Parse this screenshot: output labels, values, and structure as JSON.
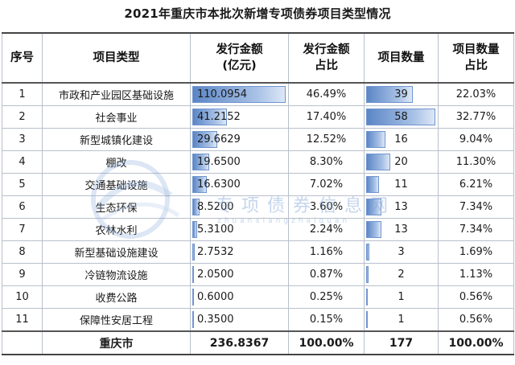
{
  "title": "2021年重庆市本批次新增专项债券项目类型情况",
  "headers": {
    "seq": "序号",
    "type": "项目类型",
    "amount_line1": "发行金额",
    "amount_line2": "(亿元)",
    "amount_share_line1": "发行金额",
    "amount_share_line2": "占比",
    "count": "项目数量",
    "count_share_line1": "项目数量",
    "count_share_line2": "占比"
  },
  "rows": [
    {
      "seq": "1",
      "type": "市政和产业园区基础设施",
      "amount": "110.0954",
      "amount_share": "46.49%",
      "count": "39",
      "count_share": "22.03%",
      "amount_value": 110.0954,
      "count_value": 39
    },
    {
      "seq": "2",
      "type": "社会事业",
      "amount": "41.2152",
      "amount_share": "17.40%",
      "count": "58",
      "count_share": "32.77%",
      "amount_value": 41.2152,
      "count_value": 58
    },
    {
      "seq": "3",
      "type": "新型城镇化建设",
      "amount": "29.6629",
      "amount_share": "12.52%",
      "count": "16",
      "count_share": "9.04%",
      "amount_value": 29.6629,
      "count_value": 16
    },
    {
      "seq": "4",
      "type": "棚改",
      "amount": "19.6500",
      "amount_share": "8.30%",
      "count": "20",
      "count_share": "11.30%",
      "amount_value": 19.65,
      "count_value": 20
    },
    {
      "seq": "5",
      "type": "交通基础设施",
      "amount": "16.6300",
      "amount_share": "7.02%",
      "count": "11",
      "count_share": "6.21%",
      "amount_value": 16.63,
      "count_value": 11
    },
    {
      "seq": "6",
      "type": "生态环保",
      "amount": "8.5200",
      "amount_share": "3.60%",
      "count": "13",
      "count_share": "7.34%",
      "amount_value": 8.52,
      "count_value": 13
    },
    {
      "seq": "7",
      "type": "农林水利",
      "amount": "5.3100",
      "amount_share": "2.24%",
      "count": "13",
      "count_share": "7.34%",
      "amount_value": 5.31,
      "count_value": 13
    },
    {
      "seq": "8",
      "type": "新型基础设施建设",
      "amount": "2.7532",
      "amount_share": "1.16%",
      "count": "3",
      "count_share": "1.69%",
      "amount_value": 2.7532,
      "count_value": 3
    },
    {
      "seq": "9",
      "type": "冷链物流设施",
      "amount": "2.0500",
      "amount_share": "0.87%",
      "count": "2",
      "count_share": "1.13%",
      "amount_value": 2.05,
      "count_value": 2
    },
    {
      "seq": "10",
      "type": "收费公路",
      "amount": "0.6000",
      "amount_share": "0.25%",
      "count": "1",
      "count_share": "0.56%",
      "amount_value": 0.6,
      "count_value": 1
    },
    {
      "seq": "11",
      "type": "保障性安居工程",
      "amount": "0.3500",
      "amount_share": "0.15%",
      "count": "1",
      "count_share": "0.56%",
      "amount_value": 0.35,
      "count_value": 1
    }
  ],
  "total": {
    "label": "重庆市",
    "amount": "236.8367",
    "amount_share": "100.00%",
    "count": "177",
    "count_share": "100.00%"
  },
  "watermark": {
    "text": "专项债券信息网",
    "sub": "zhuanxiangzhaiquan"
  },
  "colors": {
    "bar_dark": "#5b86c6",
    "bar_light": "#dde7f5",
    "watermark": "#7fa3d6"
  }
}
